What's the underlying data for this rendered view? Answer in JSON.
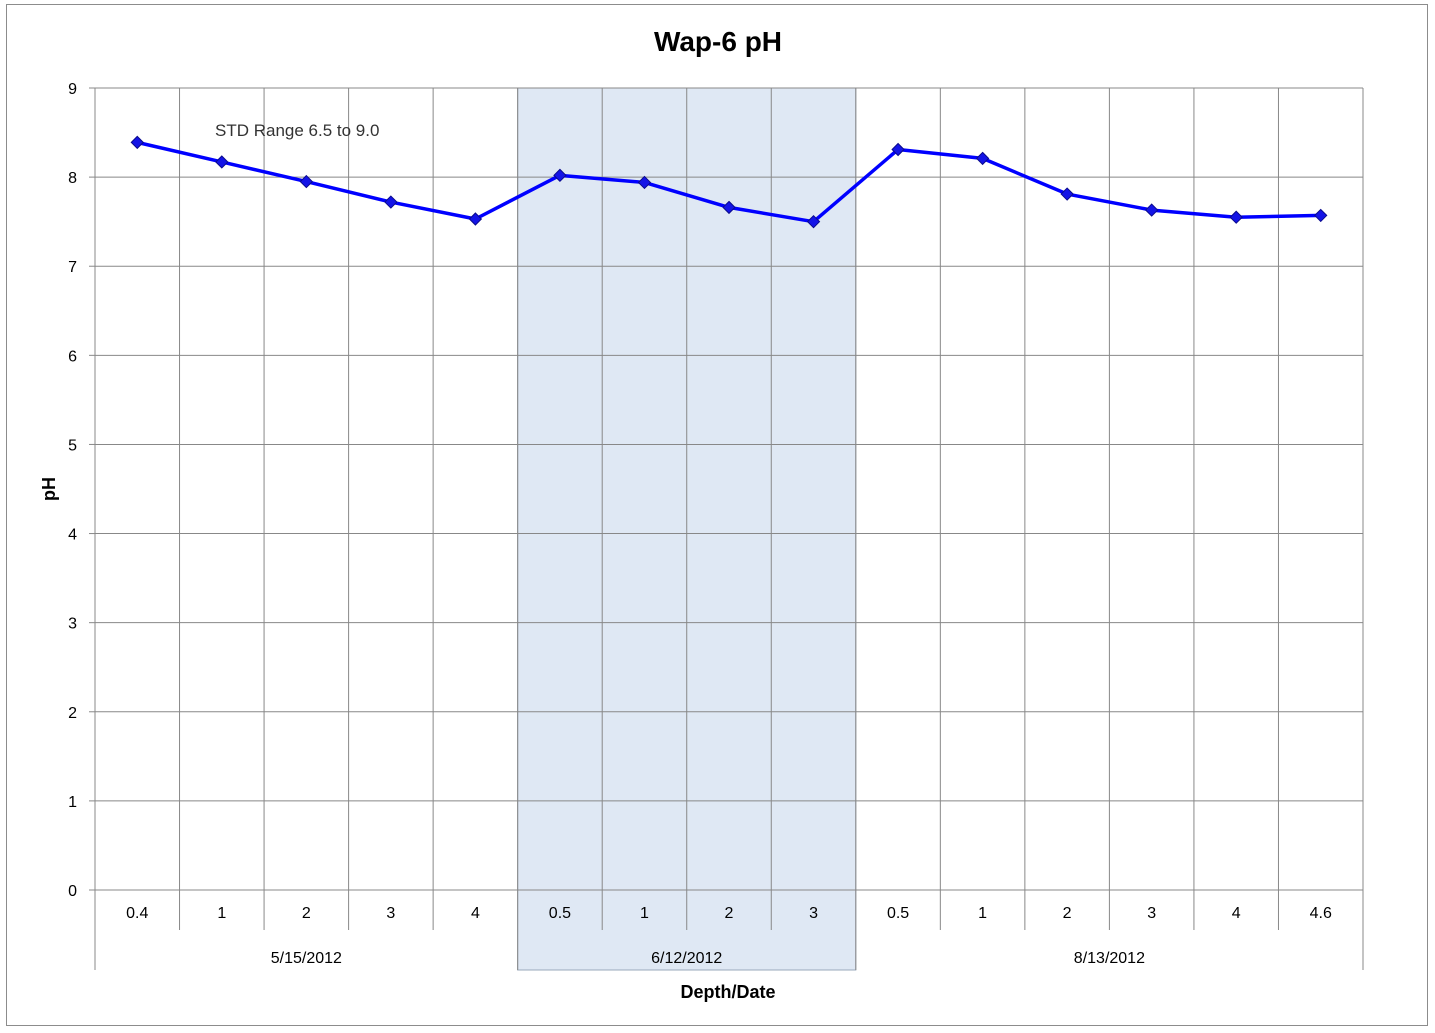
{
  "chart_data": {
    "type": "line",
    "title": "Wap-6 pH",
    "xlabel": "Depth/Date",
    "ylabel": "pH",
    "ylim": [
      0,
      9
    ],
    "yticks": [
      0,
      1,
      2,
      3,
      4,
      5,
      6,
      7,
      8,
      9
    ],
    "grid": true,
    "annotation": "STD Range 6.5 to 9.0",
    "groups": [
      {
        "label": "5/15/2012",
        "categories": [
          "0.4",
          "1",
          "2",
          "3",
          "4"
        ],
        "values": [
          8.39,
          8.17,
          7.95,
          7.72,
          7.53
        ],
        "highlighted": false
      },
      {
        "label": "6/12/2012",
        "categories": [
          "0.5",
          "1",
          "2",
          "3"
        ],
        "values": [
          8.02,
          7.94,
          7.66,
          7.5
        ],
        "highlighted": true
      },
      {
        "label": "8/13/2012",
        "categories": [
          "0.5",
          "1",
          "2",
          "3",
          "4",
          "4.6"
        ],
        "values": [
          8.31,
          8.21,
          7.81,
          7.63,
          7.55,
          7.57
        ],
        "highlighted": false
      }
    ],
    "colors": {
      "line": "#0000ff",
      "marker": "#1414e6",
      "band": "#dfe8f4",
      "grid": "#888888"
    }
  }
}
